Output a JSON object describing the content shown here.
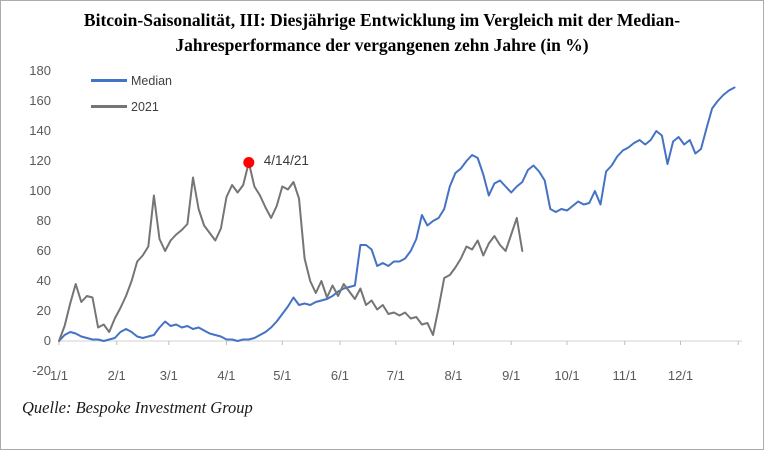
{
  "page": {
    "background": "#FFFFFF",
    "border_color": "#ABABAB"
  },
  "title": {
    "line1": "Bitcoin-Saisonalität, III: Diesjährige Entwicklung im Vergleich mit der Median-",
    "line2": "Jahresperformance der vergangenen zehn Jahre (in %)"
  },
  "source": {
    "text": "Quelle: Bespoke Investment Group"
  },
  "chart_data": {
    "type": "line",
    "title": "Bitcoin-Saisonalität, III: Diesjährige Entwicklung im Vergleich mit der Median-Jahresperformance der vergangenen zehn Jahre (in %)",
    "xlabel": "",
    "ylabel": "",
    "ylim": [
      -20,
      180
    ],
    "y_ticks": [
      180,
      160,
      140,
      120,
      100,
      80,
      60,
      40,
      20,
      0,
      -20
    ],
    "x_tick_labels": [
      "1/1",
      "2/1",
      "3/1",
      "4/1",
      "5/1",
      "6/1",
      "7/1",
      "8/1",
      "9/1",
      "10/1",
      "11/1",
      "12/1"
    ],
    "x_tick_days": [
      1,
      32,
      60,
      91,
      121,
      152,
      182,
      213,
      244,
      274,
      305,
      335
    ],
    "x_unit": "day of year",
    "grid": false,
    "legend_position": "top-left",
    "axis": {
      "color": "#D9D9D9",
      "tick_color": "#BFBFBF",
      "label_color": "#595959"
    },
    "annotation": {
      "label": "4/14/21",
      "day": 103,
      "value": 119,
      "dot_color": "#FF0000",
      "text_color": "#3A3A3A"
    },
    "series": [
      {
        "name": "Median",
        "color": "#4472C4",
        "start_day": 1,
        "step_days": 3,
        "values": [
          0,
          4,
          6,
          5,
          3,
          2,
          1,
          1,
          0,
          1,
          2,
          6,
          8,
          6,
          3,
          2,
          3,
          4,
          9,
          13,
          10,
          11,
          9,
          10,
          8,
          9,
          7,
          5,
          4,
          3,
          1,
          1,
          0,
          1,
          1,
          2,
          4,
          6,
          9,
          13,
          18,
          23,
          29,
          24,
          25,
          24,
          26,
          27,
          28,
          30,
          33,
          35,
          36,
          37,
          64,
          64,
          61,
          50,
          52,
          50,
          53,
          53,
          55,
          60,
          68,
          84,
          77,
          80,
          82,
          88,
          103,
          112,
          115,
          120,
          124,
          122,
          111,
          97,
          105,
          107,
          103,
          99,
          103,
          106,
          114,
          117,
          113,
          107,
          88,
          86,
          88,
          87,
          90,
          93,
          91,
          92,
          100,
          91,
          113,
          117,
          123,
          127,
          129,
          132,
          134,
          131,
          134,
          140,
          137,
          118,
          133,
          136,
          131,
          134,
          125,
          128,
          142,
          155,
          160,
          164,
          167,
          169
        ]
      },
      {
        "name": "2021",
        "color": "#757575",
        "start_day": 1,
        "step_days": 3,
        "values": [
          0,
          10,
          25,
          38,
          26,
          30,
          29,
          9,
          11,
          6,
          15,
          22,
          30,
          40,
          53,
          57,
          63,
          97,
          68,
          60,
          67,
          71,
          74,
          78,
          109,
          88,
          77,
          72,
          67,
          75,
          96,
          104,
          99,
          104,
          119,
          103,
          97,
          89,
          82,
          90,
          103,
          101,
          106,
          95,
          55,
          40,
          32,
          40,
          29,
          37,
          30,
          38,
          33,
          28,
          35,
          24,
          27,
          21,
          24,
          18,
          19,
          17,
          19,
          15,
          16,
          11,
          12,
          4,
          22,
          42,
          44,
          49,
          55,
          63,
          61,
          67,
          57,
          65,
          70,
          64,
          60,
          71,
          82,
          60
        ]
      }
    ],
    "source": "Quelle: Bespoke Investment Group"
  }
}
